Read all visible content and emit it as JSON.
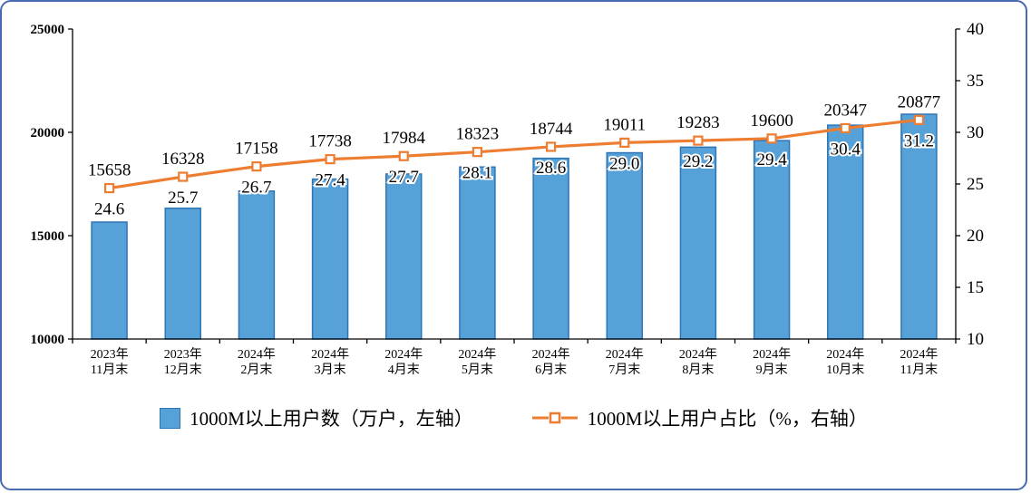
{
  "frame": {
    "border_color": "#4a69b0"
  },
  "chart_data": {
    "type": "bar+line",
    "categories": [
      [
        "2023年",
        "11月末"
      ],
      [
        "2023年",
        "12月末"
      ],
      [
        "2024年",
        "2月末"
      ],
      [
        "2024年",
        "3月末"
      ],
      [
        "2024年",
        "4月末"
      ],
      [
        "2024年",
        "5月末"
      ],
      [
        "2024年",
        "6月末"
      ],
      [
        "2024年",
        "7月末"
      ],
      [
        "2024年",
        "8月末"
      ],
      [
        "2024年",
        "9月末"
      ],
      [
        "2024年",
        "10月末"
      ],
      [
        "2024年",
        "11月末"
      ]
    ],
    "series": [
      {
        "name": "1000M以上用户数（万户，左轴）",
        "type": "bar",
        "axis": "left",
        "values": [
          15658,
          16328,
          17158,
          17738,
          17984,
          18323,
          18744,
          19011,
          19283,
          19600,
          20347,
          20877
        ],
        "color": "#57a1d9",
        "border_color": "#2e75b6"
      },
      {
        "name": "1000M以上用户占比（%，右轴）",
        "type": "line",
        "axis": "right",
        "values": [
          24.6,
          25.7,
          26.7,
          27.4,
          27.7,
          28.1,
          28.6,
          29.0,
          29.2,
          29.4,
          30.4,
          31.2
        ],
        "color": "#ed7d31",
        "marker": "square"
      }
    ],
    "left_axis": {
      "range": [
        10000,
        25000
      ],
      "ticks": [
        10000,
        15000,
        20000,
        25000
      ]
    },
    "right_axis": {
      "range": [
        10,
        40
      ],
      "ticks": [
        10,
        15,
        20,
        25,
        30,
        35,
        40
      ]
    },
    "grid": false,
    "legend_position": "bottom",
    "axis_color": "#000000"
  }
}
